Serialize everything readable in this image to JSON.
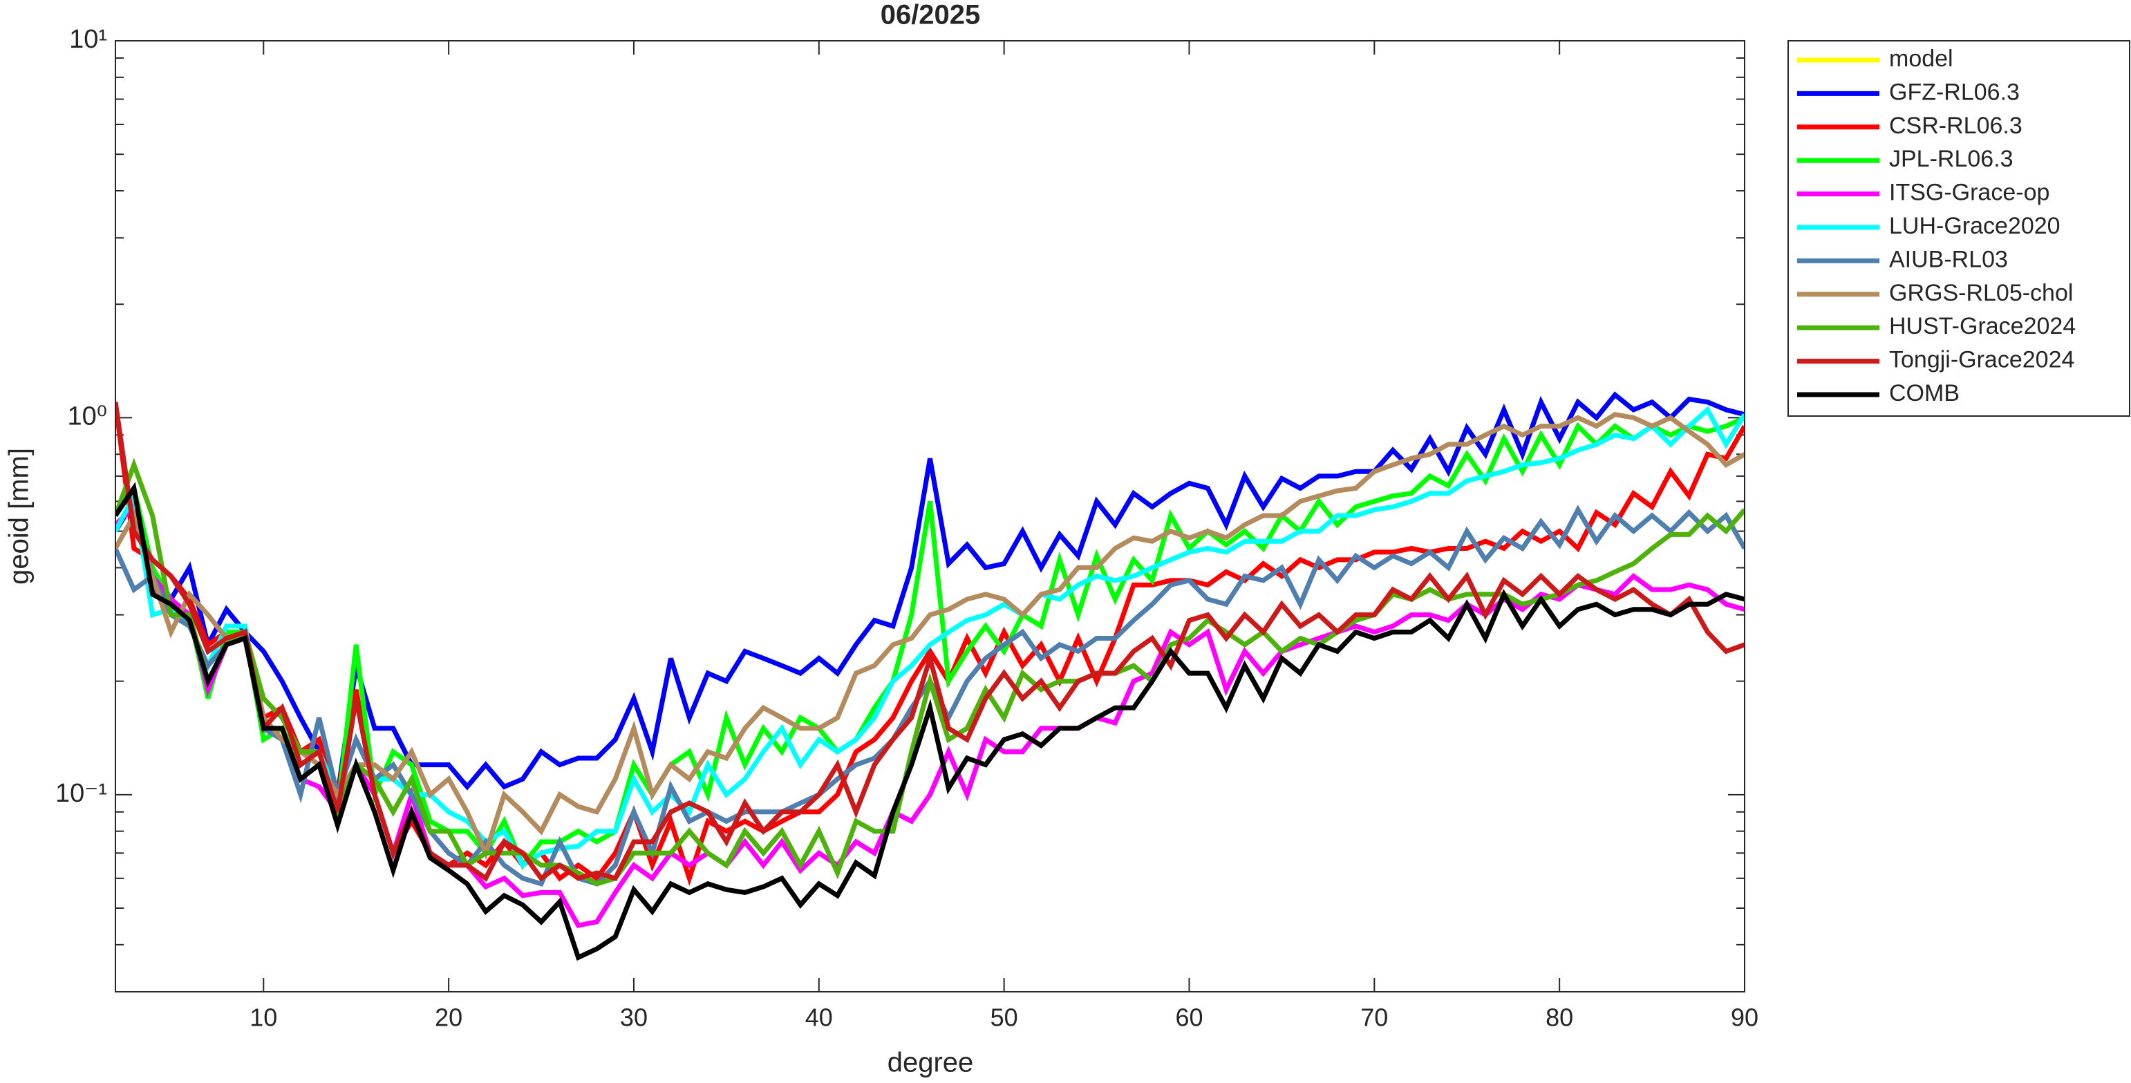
{
  "chart_data": {
    "type": "line",
    "title": "06/2025",
    "xlabel": "degree",
    "ylabel": "geoid [mm]",
    "log_y": true,
    "legend": "outside-top-right",
    "xlim": [
      2,
      90
    ],
    "xticks": [
      10,
      20,
      30,
      40,
      50,
      60,
      70,
      80,
      90
    ],
    "ylim": [
      0.03,
      10
    ],
    "yticks": [
      {
        "value": 0.1,
        "label": "10⁻¹"
      },
      {
        "value": 1,
        "label": "10⁰"
      },
      {
        "value": 10,
        "label": "10¹"
      }
    ],
    "yminor_ticks": [
      0.04,
      0.05,
      0.06,
      0.07,
      0.08,
      0.09,
      0.2,
      0.3,
      0.4,
      0.5,
      0.6,
      0.7,
      0.8,
      0.9,
      2,
      3,
      4,
      5,
      6,
      7,
      8,
      9
    ],
    "x": [
      2,
      3,
      4,
      5,
      6,
      7,
      8,
      9,
      10,
      11,
      12,
      13,
      14,
      15,
      16,
      17,
      18,
      19,
      20,
      21,
      22,
      23,
      24,
      25,
      26,
      27,
      28,
      29,
      30,
      31,
      32,
      33,
      34,
      35,
      36,
      37,
      38,
      39,
      40,
      41,
      42,
      43,
      44,
      45,
      46,
      47,
      48,
      49,
      50,
      51,
      52,
      53,
      54,
      55,
      56,
      57,
      58,
      59,
      60,
      61,
      62,
      63,
      64,
      65,
      66,
      67,
      68,
      69,
      70,
      71,
      72,
      73,
      74,
      75,
      76,
      77,
      78,
      79,
      80,
      81,
      82,
      83,
      84,
      85,
      86,
      87,
      88,
      89,
      90
    ],
    "series": [
      {
        "name": "model",
        "color": "#ffff00",
        "values": [
          null,
          null,
          null,
          null,
          null,
          null,
          null,
          null,
          null,
          null,
          null,
          null,
          null,
          null,
          null,
          null,
          null,
          null,
          null,
          null,
          null,
          null,
          null,
          null,
          null,
          null,
          null,
          null,
          null,
          null,
          null,
          null,
          null,
          null,
          null,
          null,
          null,
          null,
          null,
          null,
          null,
          null,
          null,
          null,
          null,
          null,
          null,
          null,
          null,
          null,
          null,
          null,
          null,
          null,
          null,
          null,
          null,
          null,
          null,
          null,
          null,
          null,
          null,
          null,
          null,
          null,
          null,
          null,
          null,
          null,
          null,
          null,
          null,
          null,
          null,
          null,
          null,
          null,
          null,
          null,
          null,
          null,
          null,
          null,
          null,
          null,
          null,
          null,
          null
        ]
      },
      {
        "name": "GFZ-RL06.3",
        "color": "#0000ff",
        "values": [
          0.5,
          0.6,
          0.35,
          0.33,
          0.4,
          0.25,
          0.31,
          0.27,
          0.24,
          0.2,
          0.16,
          0.13,
          0.1,
          0.22,
          0.15,
          0.15,
          0.12,
          0.12,
          0.12,
          0.105,
          0.12,
          0.105,
          0.11,
          0.13,
          0.12,
          0.125,
          0.125,
          0.14,
          0.18,
          0.13,
          0.23,
          0.16,
          0.21,
          0.2,
          0.24,
          0.23,
          0.22,
          0.21,
          0.23,
          0.21,
          0.25,
          0.29,
          0.28,
          0.4,
          0.78,
          0.41,
          0.46,
          0.4,
          0.41,
          0.5,
          0.4,
          0.49,
          0.43,
          0.6,
          0.52,
          0.63,
          0.58,
          0.63,
          0.67,
          0.65,
          0.52,
          0.7,
          0.58,
          0.69,
          0.65,
          0.7,
          0.7,
          0.72,
          0.72,
          0.82,
          0.73,
          0.88,
          0.72,
          0.94,
          0.8,
          1.05,
          0.8,
          1.1,
          0.88,
          1.1,
          1.0,
          1.15,
          1.05,
          1.1,
          1.0,
          1.12,
          1.1,
          1.05,
          1.02
        ]
      },
      {
        "name": "CSR-RL06.3",
        "color": "#ff0000",
        "values": [
          1.1,
          0.45,
          0.42,
          0.38,
          0.33,
          0.25,
          0.27,
          0.27,
          0.16,
          0.17,
          0.13,
          0.14,
          0.1,
          0.19,
          0.1,
          0.07,
          0.085,
          0.07,
          0.065,
          0.07,
          0.065,
          0.075,
          0.065,
          0.07,
          0.06,
          0.065,
          0.06,
          0.07,
          0.09,
          0.065,
          0.085,
          0.06,
          0.085,
          0.08,
          0.085,
          0.08,
          0.085,
          0.09,
          0.09,
          0.1,
          0.13,
          0.14,
          0.16,
          0.2,
          0.24,
          0.2,
          0.26,
          0.21,
          0.27,
          0.22,
          0.25,
          0.2,
          0.26,
          0.2,
          0.26,
          0.36,
          0.36,
          0.37,
          0.37,
          0.36,
          0.39,
          0.37,
          0.41,
          0.38,
          0.42,
          0.4,
          0.42,
          0.42,
          0.44,
          0.44,
          0.45,
          0.44,
          0.45,
          0.45,
          0.47,
          0.45,
          0.5,
          0.47,
          0.5,
          0.45,
          0.56,
          0.52,
          0.63,
          0.58,
          0.72,
          0.62,
          0.8,
          0.78,
          0.95
        ]
      },
      {
        "name": "JPL-RL06.3",
        "color": "#00ff00",
        "values": [
          0.55,
          0.65,
          0.4,
          0.33,
          0.3,
          0.18,
          0.27,
          0.27,
          0.14,
          0.15,
          0.12,
          0.13,
          0.09,
          0.25,
          0.1,
          0.13,
          0.12,
          0.085,
          0.08,
          0.08,
          0.07,
          0.085,
          0.065,
          0.075,
          0.075,
          0.08,
          0.075,
          0.08,
          0.12,
          0.1,
          0.12,
          0.13,
          0.1,
          0.16,
          0.12,
          0.15,
          0.13,
          0.16,
          0.15,
          0.13,
          0.14,
          0.17,
          0.2,
          0.3,
          0.6,
          0.2,
          0.24,
          0.28,
          0.24,
          0.3,
          0.28,
          0.42,
          0.3,
          0.43,
          0.33,
          0.42,
          0.37,
          0.55,
          0.45,
          0.5,
          0.46,
          0.5,
          0.45,
          0.55,
          0.5,
          0.6,
          0.52,
          0.58,
          0.6,
          0.62,
          0.63,
          0.7,
          0.66,
          0.8,
          0.68,
          0.88,
          0.72,
          0.9,
          0.75,
          0.95,
          0.85,
          0.95,
          0.88,
          0.95,
          0.9,
          0.95,
          0.92,
          0.95,
          1.0
        ]
      },
      {
        "name": "ITSG-Grace-op",
        "color": "#ff00ff",
        "values": [
          0.52,
          0.58,
          0.38,
          0.33,
          0.3,
          0.19,
          0.25,
          0.26,
          0.15,
          0.14,
          0.11,
          0.105,
          0.09,
          0.12,
          0.1,
          0.07,
          0.1,
          0.07,
          0.065,
          0.065,
          0.057,
          0.06,
          0.054,
          0.055,
          0.055,
          0.045,
          0.046,
          0.055,
          0.065,
          0.06,
          0.07,
          0.065,
          0.07,
          0.065,
          0.075,
          0.065,
          0.075,
          0.063,
          0.07,
          0.065,
          0.075,
          0.07,
          0.09,
          0.085,
          0.1,
          0.13,
          0.1,
          0.14,
          0.13,
          0.13,
          0.15,
          0.15,
          0.15,
          0.16,
          0.155,
          0.2,
          0.21,
          0.27,
          0.25,
          0.27,
          0.19,
          0.24,
          0.21,
          0.24,
          0.25,
          0.26,
          0.27,
          0.28,
          0.27,
          0.28,
          0.3,
          0.3,
          0.29,
          0.32,
          0.3,
          0.33,
          0.31,
          0.34,
          0.33,
          0.36,
          0.35,
          0.34,
          0.38,
          0.35,
          0.35,
          0.36,
          0.35,
          0.32,
          0.31
        ]
      },
      {
        "name": "LUH-Grace2020",
        "color": "#00ffff",
        "values": [
          0.5,
          0.62,
          0.3,
          0.31,
          0.28,
          0.22,
          0.28,
          0.28,
          0.15,
          0.14,
          0.13,
          0.13,
          0.1,
          0.14,
          0.11,
          0.11,
          0.1,
          0.1,
          0.09,
          0.085,
          0.075,
          0.08,
          0.065,
          0.07,
          0.072,
          0.073,
          0.08,
          0.08,
          0.11,
          0.09,
          0.1,
          0.09,
          0.12,
          0.1,
          0.11,
          0.13,
          0.15,
          0.12,
          0.14,
          0.13,
          0.14,
          0.16,
          0.2,
          0.22,
          0.25,
          0.27,
          0.29,
          0.3,
          0.32,
          0.3,
          0.34,
          0.33,
          0.36,
          0.38,
          0.37,
          0.38,
          0.4,
          0.42,
          0.44,
          0.45,
          0.44,
          0.47,
          0.47,
          0.47,
          0.5,
          0.5,
          0.55,
          0.55,
          0.57,
          0.58,
          0.6,
          0.63,
          0.63,
          0.68,
          0.7,
          0.72,
          0.75,
          0.76,
          0.78,
          0.82,
          0.85,
          0.9,
          0.88,
          0.95,
          0.85,
          0.95,
          1.05,
          0.85,
          1.02
        ]
      },
      {
        "name": "AIUB-RL03",
        "color": "#4f7faf",
        "values": [
          0.45,
          0.35,
          0.38,
          0.3,
          0.28,
          0.22,
          0.25,
          0.27,
          0.15,
          0.14,
          0.1,
          0.16,
          0.1,
          0.14,
          0.11,
          0.12,
          0.1,
          0.08,
          0.07,
          0.065,
          0.075,
          0.065,
          0.06,
          0.058,
          0.075,
          0.06,
          0.058,
          0.065,
          0.09,
          0.07,
          0.105,
          0.085,
          0.09,
          0.085,
          0.09,
          0.09,
          0.09,
          0.095,
          0.1,
          0.11,
          0.12,
          0.125,
          0.14,
          0.17,
          0.2,
          0.16,
          0.2,
          0.23,
          0.25,
          0.27,
          0.23,
          0.25,
          0.24,
          0.26,
          0.26,
          0.29,
          0.32,
          0.36,
          0.37,
          0.33,
          0.32,
          0.38,
          0.37,
          0.4,
          0.32,
          0.42,
          0.37,
          0.43,
          0.4,
          0.43,
          0.41,
          0.44,
          0.4,
          0.5,
          0.42,
          0.48,
          0.45,
          0.53,
          0.46,
          0.57,
          0.47,
          0.55,
          0.5,
          0.55,
          0.5,
          0.56,
          0.5,
          0.55,
          0.45
        ]
      },
      {
        "name": "GRGS-RL05-chol",
        "color": "#b38b5d",
        "values": [
          0.45,
          0.55,
          0.38,
          0.27,
          0.34,
          0.3,
          0.26,
          0.27,
          0.16,
          0.14,
          0.13,
          0.12,
          0.1,
          0.12,
          0.12,
          0.11,
          0.13,
          0.1,
          0.11,
          0.09,
          0.07,
          0.1,
          0.09,
          0.08,
          0.1,
          0.093,
          0.09,
          0.11,
          0.15,
          0.1,
          0.12,
          0.11,
          0.13,
          0.125,
          0.15,
          0.17,
          0.16,
          0.15,
          0.15,
          0.16,
          0.21,
          0.22,
          0.25,
          0.26,
          0.3,
          0.31,
          0.33,
          0.34,
          0.33,
          0.3,
          0.34,
          0.35,
          0.4,
          0.4,
          0.45,
          0.48,
          0.47,
          0.5,
          0.48,
          0.5,
          0.48,
          0.52,
          0.55,
          0.55,
          0.6,
          0.62,
          0.64,
          0.65,
          0.72,
          0.75,
          0.78,
          0.8,
          0.85,
          0.85,
          0.9,
          0.95,
          0.9,
          0.95,
          0.95,
          1.0,
          0.95,
          1.02,
          1.0,
          0.95,
          1.0,
          0.92,
          0.85,
          0.75,
          0.8
        ]
      },
      {
        "name": "HUST-Grace2024",
        "color": "#4db30a",
        "values": [
          0.55,
          0.75,
          0.55,
          0.3,
          0.3,
          0.2,
          0.25,
          0.27,
          0.18,
          0.16,
          0.13,
          0.13,
          0.09,
          0.12,
          0.11,
          0.09,
          0.11,
          0.08,
          0.08,
          0.065,
          0.07,
          0.07,
          0.07,
          0.065,
          0.065,
          0.062,
          0.058,
          0.06,
          0.07,
          0.07,
          0.07,
          0.08,
          0.07,
          0.065,
          0.08,
          0.07,
          0.08,
          0.065,
          0.08,
          0.062,
          0.085,
          0.08,
          0.08,
          0.13,
          0.2,
          0.14,
          0.15,
          0.19,
          0.16,
          0.21,
          0.19,
          0.2,
          0.2,
          0.21,
          0.21,
          0.22,
          0.2,
          0.25,
          0.26,
          0.29,
          0.27,
          0.25,
          0.27,
          0.24,
          0.26,
          0.25,
          0.27,
          0.29,
          0.3,
          0.34,
          0.33,
          0.35,
          0.33,
          0.34,
          0.34,
          0.34,
          0.32,
          0.33,
          0.34,
          0.36,
          0.37,
          0.39,
          0.41,
          0.45,
          0.49,
          0.49,
          0.55,
          0.5,
          0.57
        ]
      },
      {
        "name": "Tongji-Grace2024",
        "color": "#cc1a1a",
        "values": [
          1.1,
          0.5,
          0.42,
          0.38,
          0.32,
          0.24,
          0.26,
          0.27,
          0.15,
          0.17,
          0.12,
          0.13,
          0.09,
          0.18,
          0.1,
          0.07,
          0.09,
          0.07,
          0.065,
          0.065,
          0.06,
          0.075,
          0.07,
          0.06,
          0.065,
          0.06,
          0.062,
          0.06,
          0.075,
          0.075,
          0.09,
          0.095,
          0.09,
          0.075,
          0.095,
          0.08,
          0.09,
          0.09,
          0.1,
          0.12,
          0.09,
          0.12,
          0.14,
          0.16,
          0.23,
          0.15,
          0.14,
          0.18,
          0.21,
          0.18,
          0.2,
          0.17,
          0.2,
          0.21,
          0.21,
          0.24,
          0.26,
          0.22,
          0.29,
          0.3,
          0.26,
          0.3,
          0.27,
          0.32,
          0.28,
          0.3,
          0.27,
          0.3,
          0.3,
          0.35,
          0.33,
          0.38,
          0.33,
          0.38,
          0.3,
          0.37,
          0.34,
          0.38,
          0.34,
          0.38,
          0.35,
          0.33,
          0.35,
          0.32,
          0.3,
          0.33,
          0.27,
          0.24,
          0.25
        ]
      },
      {
        "name": "COMB",
        "color": "#000000",
        "values": [
          0.55,
          0.65,
          0.34,
          0.32,
          0.29,
          0.2,
          0.25,
          0.26,
          0.15,
          0.15,
          0.11,
          0.12,
          0.083,
          0.12,
          0.09,
          0.063,
          0.09,
          0.068,
          0.063,
          0.058,
          0.049,
          0.054,
          0.051,
          0.046,
          0.052,
          0.037,
          0.039,
          0.042,
          0.056,
          0.049,
          0.058,
          0.055,
          0.058,
          0.056,
          0.055,
          0.057,
          0.06,
          0.051,
          0.058,
          0.054,
          0.066,
          0.061,
          0.09,
          0.12,
          0.17,
          0.104,
          0.125,
          0.12,
          0.14,
          0.145,
          0.135,
          0.15,
          0.15,
          0.16,
          0.17,
          0.17,
          0.2,
          0.24,
          0.21,
          0.21,
          0.17,
          0.22,
          0.18,
          0.23,
          0.21,
          0.25,
          0.24,
          0.27,
          0.26,
          0.27,
          0.27,
          0.29,
          0.26,
          0.32,
          0.26,
          0.34,
          0.28,
          0.33,
          0.28,
          0.31,
          0.32,
          0.3,
          0.31,
          0.31,
          0.3,
          0.32,
          0.32,
          0.34,
          0.33
        ]
      }
    ]
  }
}
